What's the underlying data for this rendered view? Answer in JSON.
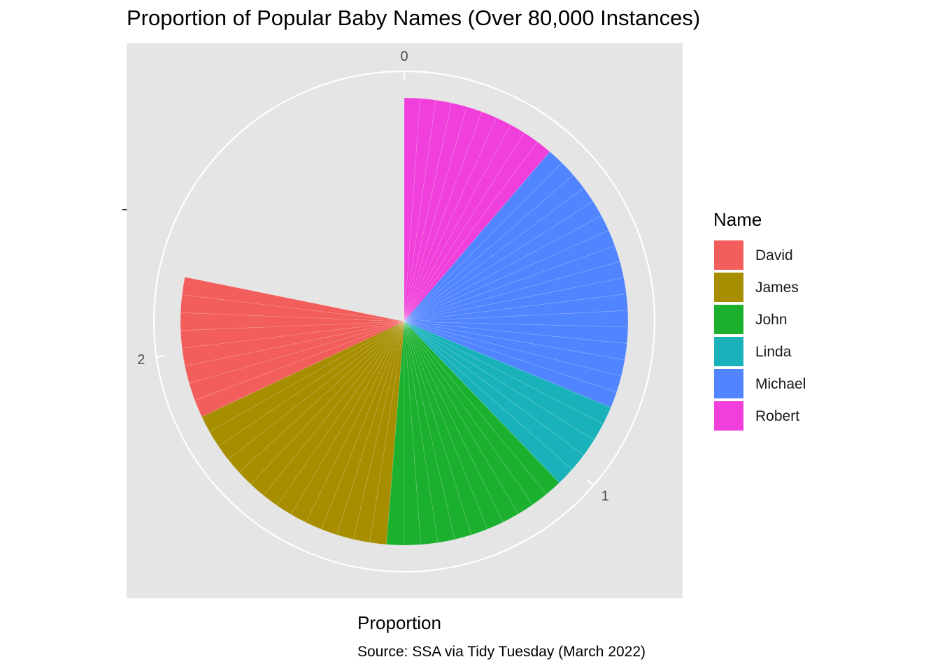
{
  "chart_data": {
    "type": "pie",
    "title": "Proportion of Popular Baby Names (Over 80,000 Instances)",
    "xlabel": "Proportion",
    "ylabel": "",
    "y_axis_tick": "-",
    "caption": "Source: SSA via Tidy Tuesday (March 2022)",
    "legend_title": "Name",
    "legend_position": "right",
    "axis_range": [
      0,
      2.75
    ],
    "axis_ticks": [
      {
        "value": 0,
        "label": "0"
      },
      {
        "value": 1,
        "label": "1"
      },
      {
        "value": 2,
        "label": "2"
      }
    ],
    "slices": [
      {
        "name": "Robert",
        "value": 0.31,
        "segments": 10,
        "color": "#F03FDA"
      },
      {
        "name": "Michael",
        "value": 0.55,
        "segments": 17,
        "color": "#5184FF"
      },
      {
        "name": "Linda",
        "value": 0.18,
        "segments": 5,
        "color": "#1AB2BA"
      },
      {
        "name": "John",
        "value": 0.37,
        "segments": 11,
        "color": "#1BB12F"
      },
      {
        "name": "James",
        "value": 0.46,
        "segments": 14,
        "color": "#A68E00"
      },
      {
        "name": "David",
        "value": 0.28,
        "segments": 8,
        "color": "#F25E5B"
      }
    ]
  },
  "legend": {
    "items": [
      {
        "label": "David",
        "color": "#F25E5B"
      },
      {
        "label": "James",
        "color": "#A68E00"
      },
      {
        "label": "John",
        "color": "#1BB12F"
      },
      {
        "label": "Linda",
        "color": "#1AB2BA"
      },
      {
        "label": "Michael",
        "color": "#5184FF"
      },
      {
        "label": "Robert",
        "color": "#F03FDA"
      }
    ]
  },
  "colors": {
    "panel_background": "#E5E5E5",
    "grid": "#FFFFFF",
    "tick_text": "#4D4D4D"
  }
}
